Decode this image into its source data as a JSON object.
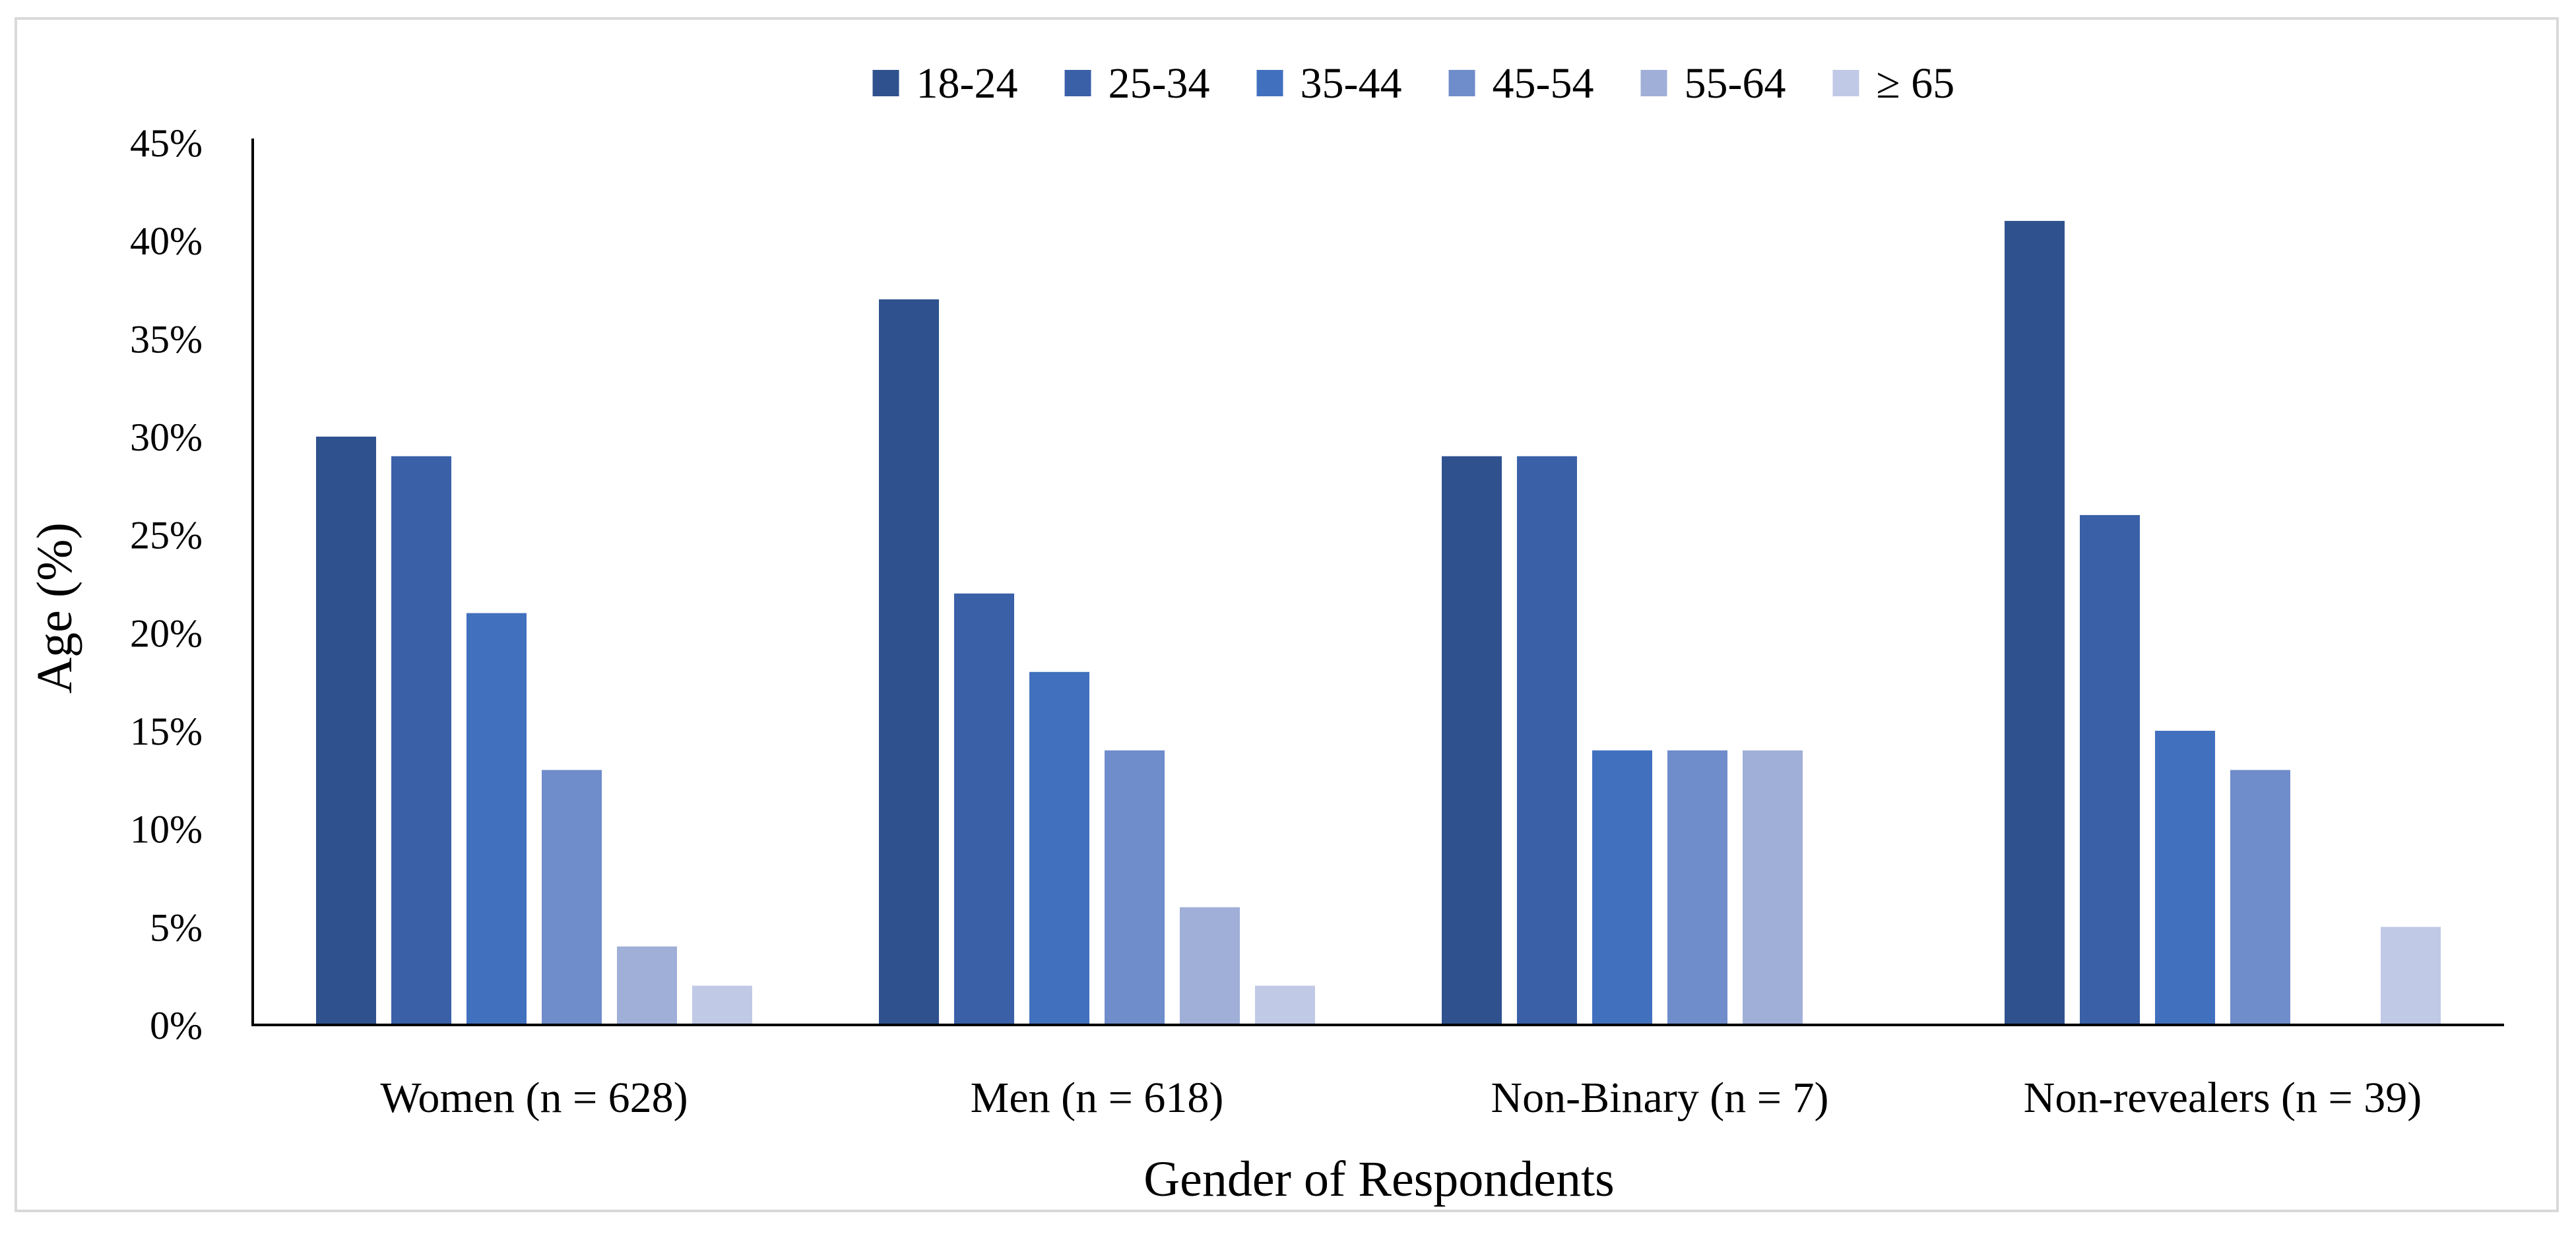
{
  "chart_data": {
    "type": "bar",
    "title": "",
    "xlabel": "Gender of Respondents",
    "ylabel": "Age (%)",
    "ylim": [
      0,
      45
    ],
    "yticks": [
      0,
      5,
      10,
      15,
      20,
      25,
      30,
      35,
      40,
      45
    ],
    "ytick_labels": [
      "0%",
      "5%",
      "10%",
      "15%",
      "20%",
      "25%",
      "30%",
      "35%",
      "40%",
      "45%"
    ],
    "categories": [
      "Women (n = 628)",
      "Men (n = 618)",
      "Non-Binary (n = 7)",
      "Non-revealers (n = 39)"
    ],
    "legend_position": "top-center",
    "grid": false,
    "series": [
      {
        "name": "18-24",
        "color": "#2f528f",
        "values": [
          30,
          37,
          29,
          41
        ]
      },
      {
        "name": "25-34",
        "color": "#3a60a8",
        "values": [
          29,
          22,
          29,
          26
        ]
      },
      {
        "name": "35-44",
        "color": "#4170be",
        "values": [
          21,
          18,
          14,
          15
        ]
      },
      {
        "name": "45-54",
        "color": "#6f8ccb",
        "values": [
          13,
          14,
          14,
          13
        ]
      },
      {
        "name": "55-64",
        "color": "#a0afd8",
        "values": [
          4,
          6,
          14,
          0
        ]
      },
      {
        "name": "≥ 65",
        "color": "#c0cae6",
        "values": [
          2,
          2,
          0,
          5
        ]
      }
    ]
  }
}
